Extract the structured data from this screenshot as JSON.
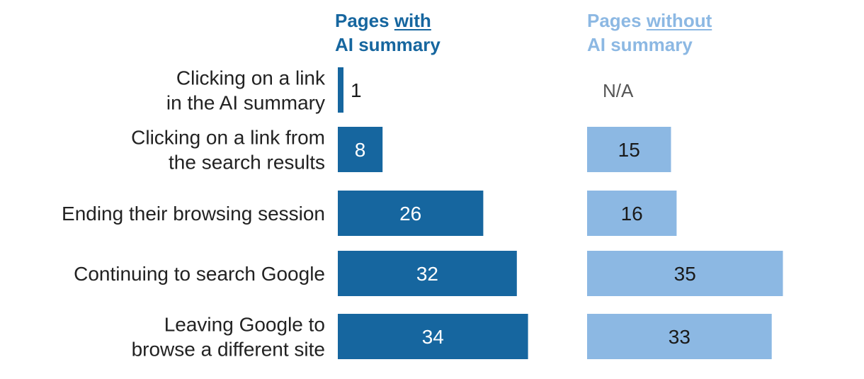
{
  "colors": {
    "with_summary": "#16669f",
    "without_summary": "#8cb8e3",
    "label_text": "#222222",
    "na_text": "#555555"
  },
  "headers": {
    "with": {
      "prefix": "Pages ",
      "emph": "with",
      "line2": "AI summary"
    },
    "without": {
      "prefix": "Pages ",
      "emph": "without",
      "line2": "AI summary"
    }
  },
  "chart_data": {
    "type": "bar",
    "orientation": "horizontal",
    "categories": [
      [
        "Clicking on a link",
        "in the AI summary"
      ],
      [
        "Clicking on a link from",
        "the search results"
      ],
      [
        "Ending their browsing session"
      ],
      [
        "Continuing to search Google"
      ],
      [
        "Leaving Google to",
        "browse a different site"
      ]
    ],
    "series": [
      {
        "name": "Pages with AI summary",
        "values": [
          1,
          8,
          26,
          32,
          34
        ],
        "labels": [
          "1",
          "8",
          "26",
          "32",
          "34"
        ]
      },
      {
        "name": "Pages without AI summary",
        "values": [
          null,
          15,
          16,
          35,
          33
        ],
        "labels": [
          "N/A",
          "15",
          "16",
          "35",
          "33"
        ]
      }
    ],
    "grid": false,
    "legend": "column headers above each bar group"
  }
}
